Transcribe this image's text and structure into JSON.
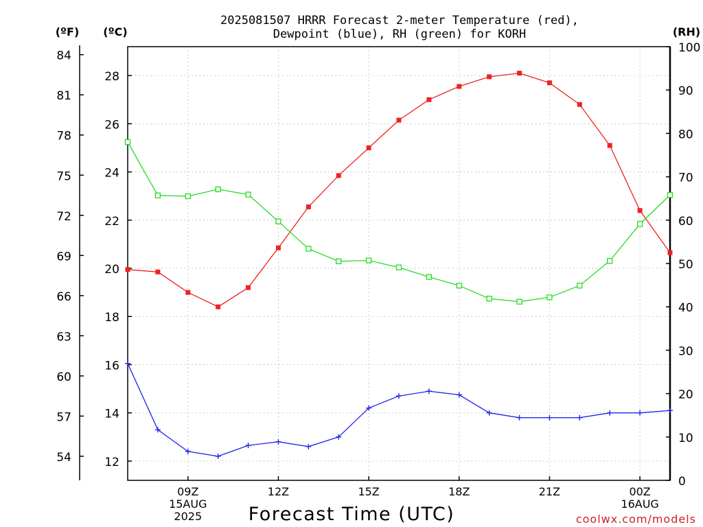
{
  "chart_data": {
    "type": "line",
    "title_line1": "2025081507 HRRR Forecast 2-meter Temperature (red),",
    "title_line2": "Dewpoint (blue), RH (green) for KORH",
    "xlabel": "Forecast Time (UTC)",
    "left_unit_label": "(ºF)",
    "celsius_unit_label": "(ºC)",
    "right_unit_label": "(RH)",
    "credit": "coolwx.com/models",
    "x_hours": [
      7,
      8,
      9,
      10,
      11,
      12,
      13,
      14,
      15,
      16,
      17,
      18,
      19,
      20,
      21,
      22,
      23,
      24,
      25
    ],
    "x_ticks": [
      {
        "hour": 9,
        "lines": [
          "09Z",
          "15AUG",
          "2025"
        ]
      },
      {
        "hour": 12,
        "lines": [
          "12Z"
        ]
      },
      {
        "hour": 15,
        "lines": [
          "15Z"
        ]
      },
      {
        "hour": 18,
        "lines": [
          "18Z"
        ]
      },
      {
        "hour": 21,
        "lines": [
          "21Z"
        ]
      },
      {
        "hour": 24,
        "lines": [
          "00Z",
          "16AUG"
        ]
      }
    ],
    "xlim": [
      7,
      25
    ],
    "celsius_axis": {
      "ticks": [
        12,
        14,
        16,
        18,
        20,
        22,
        24,
        26,
        28
      ],
      "range": [
        11.2,
        29.2
      ]
    },
    "fahrenheit_axis": {
      "ticks": [
        54,
        57,
        60,
        63,
        66,
        69,
        72,
        75,
        78,
        81,
        84
      ],
      "range": [
        52.2,
        84.6
      ]
    },
    "rh_axis": {
      "ticks": [
        0,
        10,
        20,
        30,
        40,
        50,
        60,
        70,
        80,
        90,
        100
      ],
      "range": [
        0,
        100
      ]
    },
    "grid": true,
    "series": [
      {
        "key": "temperature",
        "color": "#ee2222",
        "marker": "filled-square",
        "axis": "celsius",
        "values": [
          19.95,
          19.85,
          19.0,
          18.4,
          19.2,
          20.85,
          22.55,
          23.85,
          25.0,
          26.15,
          27.0,
          27.55,
          27.95,
          28.1,
          27.7,
          26.8,
          25.1,
          22.4,
          20.65
        ]
      },
      {
        "key": "dewpoint",
        "color": "#2222ee",
        "marker": "plus",
        "axis": "celsius",
        "values": [
          16.05,
          13.3,
          12.4,
          12.2,
          12.65,
          12.8,
          12.6,
          13.0,
          14.2,
          14.7,
          14.9,
          14.75,
          14.0,
          13.8,
          13.8,
          13.8,
          14.0,
          14.0,
          14.1
        ]
      },
      {
        "key": "rh",
        "color": "#22dd22",
        "marker": "open-square",
        "axis": "rh",
        "values": [
          78,
          65.7,
          65.5,
          67.1,
          65.9,
          59.7,
          53.4,
          50.5,
          50.7,
          49.1,
          46.9,
          44.9,
          41.9,
          41.2,
          42.2,
          44.9,
          50.6,
          59.1,
          65.8
        ]
      }
    ]
  }
}
